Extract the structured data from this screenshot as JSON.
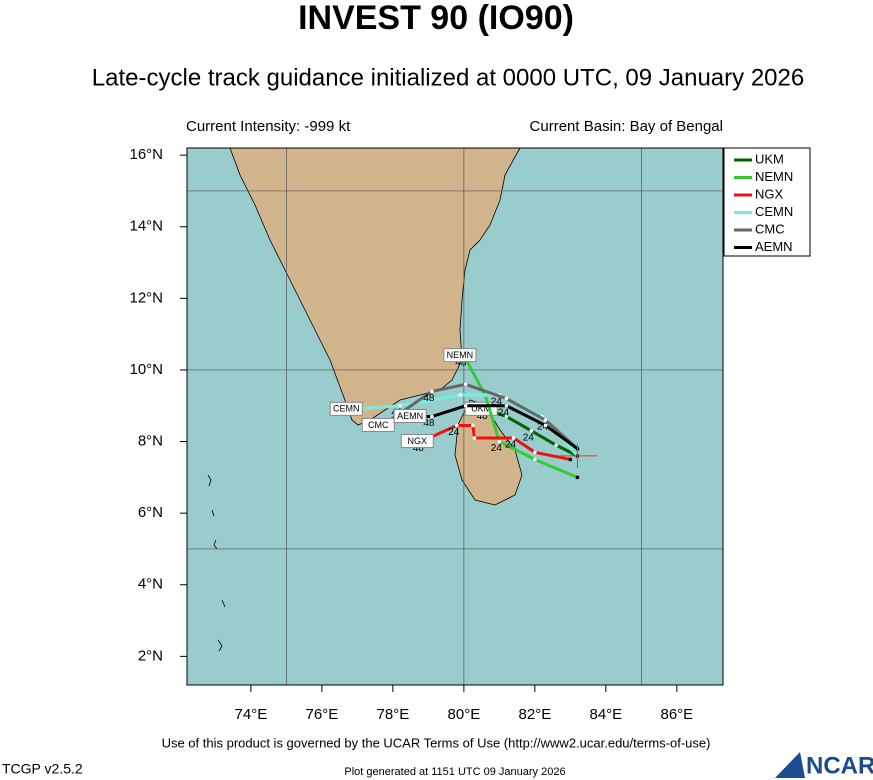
{
  "header": {
    "title": "INVEST 90 (IO90)",
    "subtitle": "Late-cycle track guidance initialized at 0000 UTC, 09 January 2026",
    "intensity": "Current Intensity: -999 kt",
    "basin": "Current Basin: Bay of Bengal"
  },
  "map": {
    "xlim": [
      72.2,
      87.3
    ],
    "ylim": [
      1.2,
      16.2
    ],
    "xticks": [
      {
        "value": 74,
        "label": "74°E"
      },
      {
        "value": 76,
        "label": "76°E"
      },
      {
        "value": 78,
        "label": "78°E"
      },
      {
        "value": 80,
        "label": "80°E"
      },
      {
        "value": 82,
        "label": "82°E"
      },
      {
        "value": 84,
        "label": "84°E"
      },
      {
        "value": 86,
        "label": "86°E"
      }
    ],
    "yticks": [
      {
        "value": 2,
        "label": "2°N"
      },
      {
        "value": 4,
        "label": "4°N"
      },
      {
        "value": 6,
        "label": "6°N"
      },
      {
        "value": 8,
        "label": "8°N"
      },
      {
        "value": 10,
        "label": "10°N"
      },
      {
        "value": 12,
        "label": "12°N"
      },
      {
        "value": 14,
        "label": "14°N"
      },
      {
        "value": 16,
        "label": "16°N"
      }
    ],
    "grid_lon": [
      75,
      80,
      85
    ],
    "grid_lat": [
      5,
      10,
      15
    ],
    "center": {
      "lon": 83.2,
      "lat": 7.6
    },
    "tracks": [
      {
        "name": "UKM",
        "color": "#006400",
        "lon": [
          83.2,
          82.6,
          81.9,
          81.2,
          80.6
        ],
        "lat": [
          7.6,
          7.9,
          8.3,
          8.7,
          8.9
        ],
        "labels": [
          null,
          null,
          "24",
          null,
          "48"
        ]
      },
      {
        "name": "NEMN",
        "color": "#33cc33",
        "lon": [
          83.2,
          82.0,
          81.0,
          80.6,
          80.0
        ],
        "lat": [
          7.0,
          7.5,
          8.0,
          9.3,
          10.4
        ],
        "labels": [
          null,
          null,
          "24",
          null,
          "48"
        ]
      },
      {
        "name": "NGX",
        "color": "#ee1111",
        "lon": [
          83.0,
          82.0,
          81.4,
          80.3,
          80.25,
          79.8,
          78.8
        ],
        "lat": [
          7.5,
          7.7,
          8.1,
          8.1,
          8.45,
          8.45,
          8.0
        ],
        "labels": [
          null,
          null,
          "24",
          null,
          null,
          "24",
          "48"
        ]
      },
      {
        "name": "CEMN",
        "color": "#77eedd",
        "lon": [
          83.2,
          82.2,
          81.0,
          79.9,
          78.2,
          76.8
        ],
        "lat": [
          7.6,
          8.7,
          9.3,
          9.3,
          9.0,
          8.9
        ],
        "labels": [
          null,
          null,
          "24",
          null,
          "48",
          null
        ]
      },
      {
        "name": "CMC",
        "color": "#666666",
        "lon": [
          83.2,
          82.3,
          81.2,
          80.05,
          79.1,
          77.7
        ],
        "lat": [
          7.8,
          8.6,
          9.2,
          9.6,
          9.4,
          8.45
        ],
        "labels": [
          null,
          "24",
          null,
          null,
          "48",
          null
        ]
      },
      {
        "name": "AEMN",
        "color": "#000000",
        "lon": [
          83.2,
          82.3,
          81.2,
          80.05,
          79.1,
          78.6
        ],
        "lat": [
          7.8,
          8.45,
          9.0,
          9.0,
          8.7,
          8.7
        ],
        "labels": [
          null,
          null,
          "24",
          null,
          "48",
          null
        ]
      }
    ]
  },
  "footer": {
    "terms": "Use of this product is governed by the UCAR Terms of Use (http://www2.ucar.edu/terms-of-use)",
    "version": "TCGP v2.5.2",
    "generated": "Plot generated at 1151 UTC  09 January 2026",
    "logo": "NCAR"
  }
}
